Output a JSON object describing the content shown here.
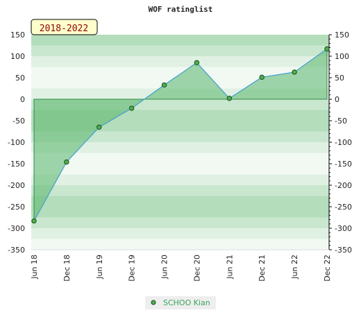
{
  "chart_data": {
    "type": "line",
    "title": "WOF ratinglist",
    "period_label": "2018-2022",
    "xlabel": "",
    "ylabel": "",
    "x": [
      "Jun 18",
      "Dec 18",
      "Jun 19",
      "Dec 19",
      "Jun 20",
      "Dec 20",
      "Jun 21",
      "Dec 21",
      "Jun 22",
      "Dec 22"
    ],
    "series": [
      {
        "name": "SCHOO Kian",
        "values": [
          -283,
          -146,
          -65,
          -21,
          33,
          85,
          2,
          51,
          63,
          117
        ]
      }
    ],
    "ylim": [
      -350,
      150
    ],
    "yticks": [
      -350,
      -300,
      -250,
      -200,
      -150,
      -100,
      -50,
      0,
      50,
      100,
      150
    ],
    "grid": false,
    "legend": "bottom-center",
    "colors": {
      "line": "#4aa3d8",
      "area": "#57b56a",
      "marker": "#4caf50",
      "legend_text": "#3aa55a",
      "badge_bg": "#ffffcc"
    }
  }
}
